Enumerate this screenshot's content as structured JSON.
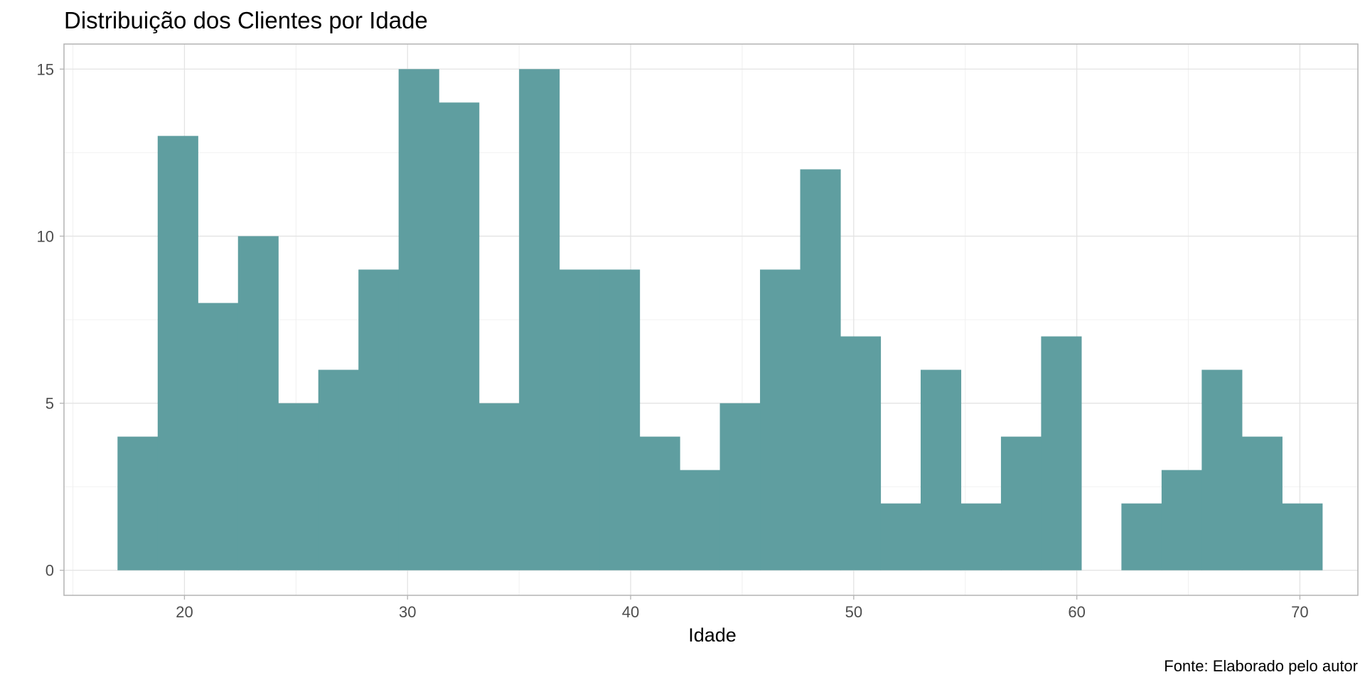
{
  "chart_data": {
    "type": "bar",
    "title": "Distribuição dos Clientes por Idade",
    "xlabel": "Idade",
    "ylabel": "",
    "caption": "Fonte: Elaborado pelo autor",
    "xlim": [
      14.6,
      72.6
    ],
    "ylim": [
      -0.75,
      15.75
    ],
    "xticks": [
      20,
      30,
      40,
      50,
      60,
      70
    ],
    "yticks": [
      0,
      5,
      10,
      15
    ],
    "grid": true,
    "bar_color": "#5F9EA0",
    "bins": [
      {
        "x0": 17.0,
        "x1": 18.8,
        "count": 4
      },
      {
        "x0": 18.8,
        "x1": 20.6,
        "count": 13
      },
      {
        "x0": 20.6,
        "x1": 22.4,
        "count": 8
      },
      {
        "x0": 22.4,
        "x1": 24.2,
        "count": 10
      },
      {
        "x0": 24.2,
        "x1": 26.0,
        "count": 5
      },
      {
        "x0": 26.0,
        "x1": 27.8,
        "count": 6
      },
      {
        "x0": 27.8,
        "x1": 29.6,
        "count": 9
      },
      {
        "x0": 29.6,
        "x1": 31.4,
        "count": 15
      },
      {
        "x0": 31.4,
        "x1": 33.2,
        "count": 14
      },
      {
        "x0": 33.2,
        "x1": 35.0,
        "count": 5
      },
      {
        "x0": 35.0,
        "x1": 36.8,
        "count": 15
      },
      {
        "x0": 36.8,
        "x1": 38.6,
        "count": 9
      },
      {
        "x0": 38.6,
        "x1": 40.4,
        "count": 9
      },
      {
        "x0": 40.4,
        "x1": 42.2,
        "count": 4
      },
      {
        "x0": 42.2,
        "x1": 44.0,
        "count": 3
      },
      {
        "x0": 44.0,
        "x1": 45.8,
        "count": 5
      },
      {
        "x0": 45.8,
        "x1": 47.6,
        "count": 9
      },
      {
        "x0": 47.6,
        "x1": 49.4,
        "count": 12
      },
      {
        "x0": 49.4,
        "x1": 51.2,
        "count": 7
      },
      {
        "x0": 51.2,
        "x1": 53.0,
        "count": 2
      },
      {
        "x0": 53.0,
        "x1": 54.8,
        "count": 6
      },
      {
        "x0": 54.8,
        "x1": 56.6,
        "count": 2
      },
      {
        "x0": 56.6,
        "x1": 58.4,
        "count": 4
      },
      {
        "x0": 58.4,
        "x1": 60.2,
        "count": 7
      },
      {
        "x0": 60.2,
        "x1": 62.0,
        "count": 0
      },
      {
        "x0": 62.0,
        "x1": 63.8,
        "count": 2
      },
      {
        "x0": 63.8,
        "x1": 65.6,
        "count": 3
      },
      {
        "x0": 65.6,
        "x1": 67.4,
        "count": 6
      },
      {
        "x0": 67.4,
        "x1": 69.2,
        "count": 4
      },
      {
        "x0": 69.2,
        "x1": 71.0,
        "count": 2
      }
    ]
  }
}
